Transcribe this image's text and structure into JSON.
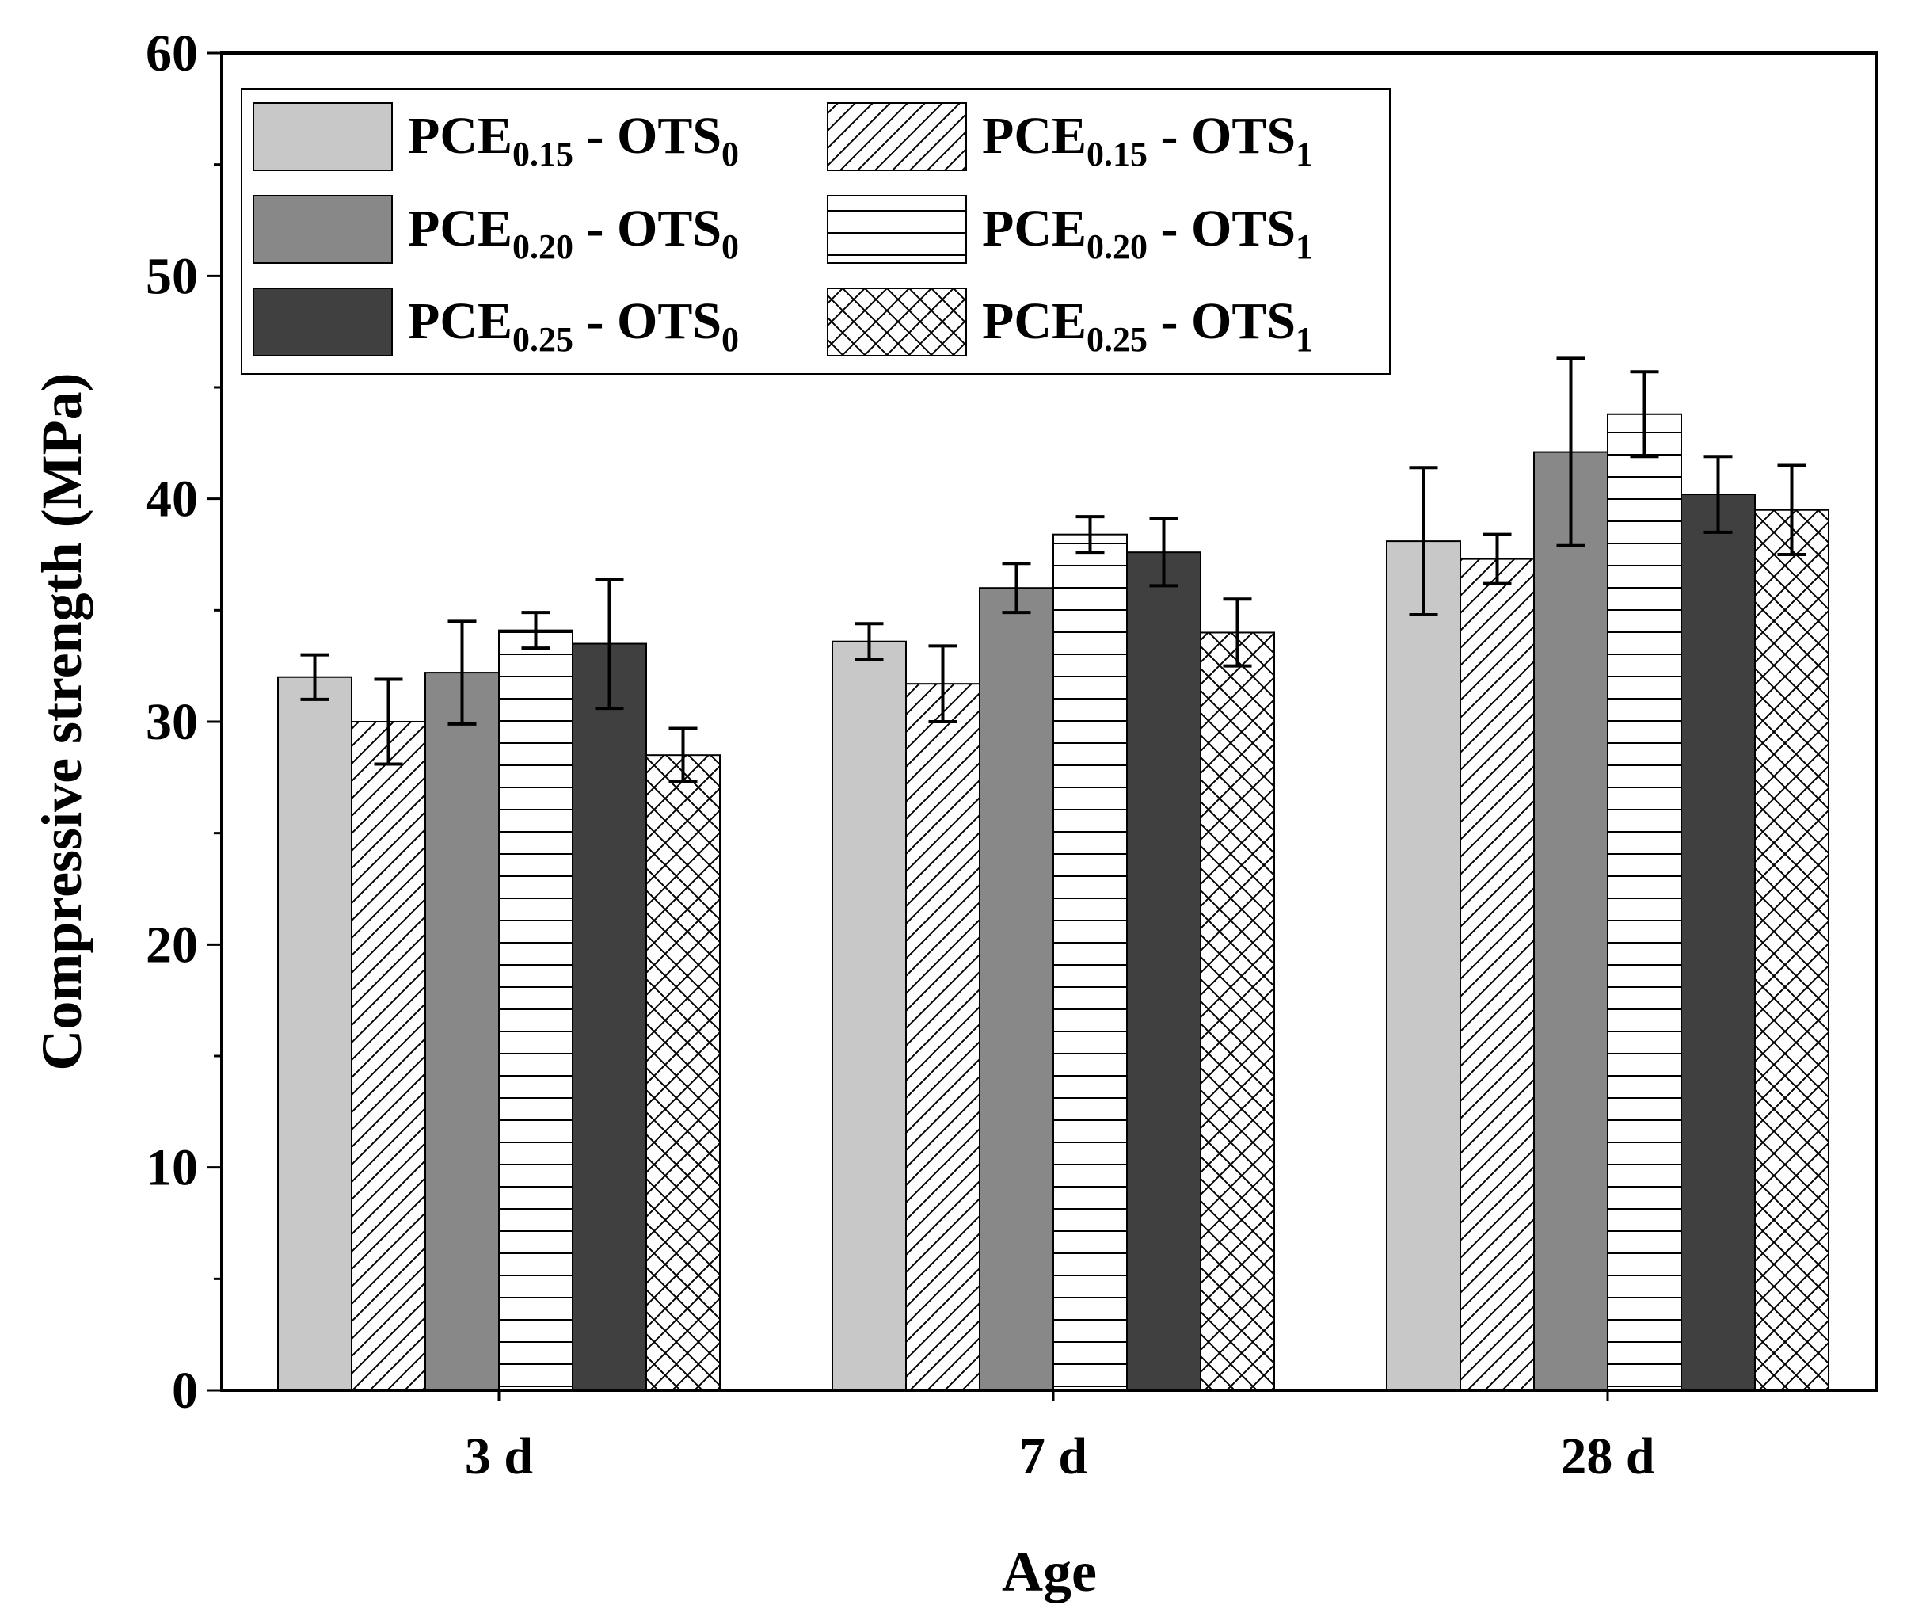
{
  "chart_data": {
    "type": "bar",
    "title": "",
    "xlabel": "Age",
    "ylabel": "Compressive strength (MPa)",
    "ylim": [
      0,
      60
    ],
    "yticks": [
      0,
      10,
      20,
      30,
      40,
      50,
      60
    ],
    "y_tick_labels": [
      "0",
      "10",
      "20",
      "30",
      "40",
      "50",
      "60"
    ],
    "categories": [
      "3 d",
      "7 d",
      "28 d"
    ],
    "legend_position": "top-left",
    "grid": false,
    "series": [
      {
        "name": "PCE0.15 - OTS0",
        "label_main": "PCE",
        "label_sub1": "0.15",
        "label_mid": " - OTS",
        "label_sub2": "0",
        "fill": "#c8c8c8",
        "pattern": "solid",
        "values": [
          32.0,
          33.6,
          38.1
        ],
        "errors": [
          1.0,
          0.8,
          3.3
        ]
      },
      {
        "name": "PCE0.15 - OTS1",
        "label_main": "PCE",
        "label_sub1": "0.15",
        "label_mid": " - OTS",
        "label_sub2": "1",
        "fill": "#ffffff",
        "pattern": "diagonal",
        "values": [
          30.0,
          31.7,
          37.3
        ],
        "errors": [
          1.9,
          1.7,
          1.1
        ]
      },
      {
        "name": "PCE0.20 - OTS0",
        "label_main": "PCE",
        "label_sub1": "0.20",
        "label_mid": " - OTS",
        "label_sub2": "0",
        "fill": "#888888",
        "pattern": "solid",
        "values": [
          32.2,
          36.0,
          42.1
        ],
        "errors": [
          2.3,
          1.1,
          4.2
        ]
      },
      {
        "name": "PCE0.20 - OTS1",
        "label_main": "PCE",
        "label_sub1": "0.20",
        "label_mid": " - OTS",
        "label_sub2": "1",
        "fill": "#ffffff",
        "pattern": "horizontal",
        "values": [
          34.1,
          38.4,
          43.8
        ],
        "errors": [
          0.8,
          0.8,
          1.9
        ]
      },
      {
        "name": "PCE0.25 - OTS0",
        "label_main": "PCE",
        "label_sub1": "0.25",
        "label_mid": " - OTS",
        "label_sub2": "0",
        "fill": "#404040",
        "pattern": "solid",
        "values": [
          33.5,
          37.6,
          40.2
        ],
        "errors": [
          2.9,
          1.5,
          1.7
        ]
      },
      {
        "name": "PCE0.25 - OTS1",
        "label_main": "PCE",
        "label_sub1": "0.25",
        "label_mid": " - OTS",
        "label_sub2": "1",
        "fill": "#ffffff",
        "pattern": "crosshatch",
        "values": [
          28.5,
          34.0,
          39.5
        ],
        "errors": [
          1.2,
          1.5,
          2.0
        ]
      }
    ]
  }
}
